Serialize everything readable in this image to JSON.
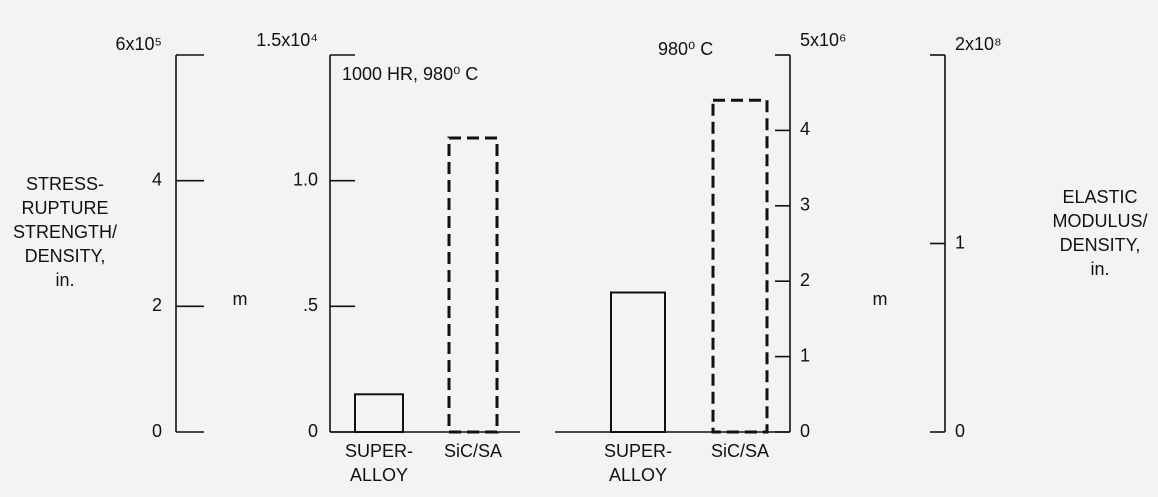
{
  "chart_data": [
    {
      "type": "bar",
      "ylabel": [
        "STRESS-",
        "RUPTURE",
        "STRENGTH/",
        "DENSITY,",
        "in."
      ],
      "unit_label": "m",
      "annotation": "1000 HR, 980⁰ C",
      "categories": [
        "SUPER-\nALLOY",
        "SiC/SA"
      ],
      "values": [
        1500,
        11700
      ],
      "bar_styles": [
        "solid",
        "dashed"
      ],
      "color": "#111111",
      "ylim": [
        0,
        15000
      ],
      "yticks": [
        0,
        {
          "value": 5000,
          "label": ".5"
        },
        {
          "value": 10000,
          "label": "1.0"
        },
        {
          "value": 15000,
          "label": "1.5x10⁴"
        }
      ],
      "y2lim": [
        0,
        600000
      ],
      "y2ticks": [
        0,
        {
          "value": 200000,
          "label": "2"
        },
        {
          "value": 400000,
          "label": "4"
        },
        {
          "value": 600000,
          "label": "6x10⁵"
        }
      ]
    },
    {
      "type": "bar",
      "ylabel": [
        "ELASTIC",
        "MODULUS/",
        "DENSITY,",
        "in."
      ],
      "unit_label": "m",
      "annotation": "980⁰ C",
      "categories": [
        "SUPER-\nALLOY",
        "SiC/SA"
      ],
      "values": [
        1850000,
        4400000
      ],
      "bar_styles": [
        "solid",
        "dashed"
      ],
      "color": "#111111",
      "ylim": [
        0,
        5000000
      ],
      "yticks": [
        0,
        {
          "value": 1000000,
          "label": "1"
        },
        {
          "value": 2000000,
          "label": "2"
        },
        {
          "value": 3000000,
          "label": "3"
        },
        {
          "value": 4000000,
          "label": "4"
        },
        {
          "value": 5000000,
          "label": "5x10⁶"
        }
      ],
      "y2lim": [
        0,
        200000000
      ],
      "y2ticks": [
        0,
        {
          "value": 100000000,
          "label": "1"
        },
        {
          "value": 200000000,
          "label": "2x10⁸"
        }
      ]
    }
  ]
}
